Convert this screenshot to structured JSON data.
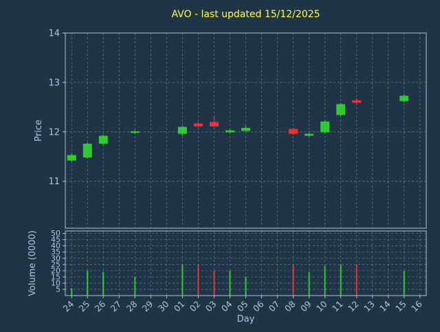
{
  "colors": {
    "background": "#203448",
    "title": "#ffff40",
    "axis_text": "#b0c4de",
    "grid": "#b0c4de",
    "up": "#2ecc2e",
    "down": "#e23535"
  },
  "chart_data": {
    "type": "candlestick",
    "title": "AVO - last updated 15/12/2025",
    "xlabel": "Day",
    "price_ylabel": "Price",
    "volume_ylabel": "Volume (0000)",
    "x_ticks": [
      "24",
      "25",
      "26",
      "27",
      "28",
      "29",
      "30",
      "01",
      "02",
      "03",
      "04",
      "05",
      "06",
      "07",
      "08",
      "09",
      "10",
      "11",
      "12",
      "13",
      "14",
      "15",
      "16"
    ],
    "price_ylim": [
      10.05,
      14
    ],
    "price_yticks": [
      11,
      12,
      13,
      14
    ],
    "volume_ylim": [
      0,
      52
    ],
    "volume_yticks": [
      5,
      10,
      15,
      20,
      25,
      30,
      35,
      40,
      45,
      50
    ],
    "grid": true,
    "legend": "none",
    "candles": [
      {
        "day": "24",
        "open": 11.42,
        "high": 11.55,
        "low": 11.4,
        "close": 11.53,
        "volume": 6
      },
      {
        "day": "25",
        "open": 11.48,
        "high": 11.78,
        "low": 11.46,
        "close": 11.76,
        "volume": 20
      },
      {
        "day": "26",
        "open": 11.76,
        "high": 11.94,
        "low": 11.74,
        "close": 11.92,
        "volume": 19
      },
      {
        "day": "28",
        "open": 11.98,
        "high": 12.03,
        "low": 11.96,
        "close": 12.01,
        "volume": 15
      },
      {
        "day": "01",
        "open": 11.96,
        "high": 12.12,
        "low": 11.92,
        "close": 12.1,
        "volume": 25
      },
      {
        "day": "02",
        "open": 12.17,
        "high": 12.19,
        "low": 12.09,
        "close": 12.11,
        "volume": 25
      },
      {
        "day": "03",
        "open": 12.2,
        "high": 12.31,
        "low": 12.09,
        "close": 12.11,
        "volume": 20
      },
      {
        "day": "04",
        "open": 11.99,
        "high": 12.05,
        "low": 11.97,
        "close": 12.03,
        "volume": 20
      },
      {
        "day": "05",
        "open": 12.02,
        "high": 12.12,
        "low": 12.0,
        "close": 12.08,
        "volume": 15
      },
      {
        "day": "08",
        "open": 12.06,
        "high": 12.08,
        "low": 11.94,
        "close": 11.96,
        "volume": 25
      },
      {
        "day": "09",
        "open": 11.92,
        "high": 11.98,
        "low": 11.9,
        "close": 11.96,
        "volume": 19
      },
      {
        "day": "10",
        "open": 11.99,
        "high": 12.23,
        "low": 11.97,
        "close": 12.21,
        "volume": 24
      },
      {
        "day": "11",
        "open": 12.34,
        "high": 12.58,
        "low": 12.32,
        "close": 12.56,
        "volume": 25
      },
      {
        "day": "12",
        "open": 12.64,
        "high": 12.68,
        "low": 12.57,
        "close": 12.59,
        "volume": 25
      },
      {
        "day": "15",
        "open": 12.62,
        "high": 12.76,
        "low": 12.6,
        "close": 12.73,
        "volume": 20
      }
    ]
  }
}
